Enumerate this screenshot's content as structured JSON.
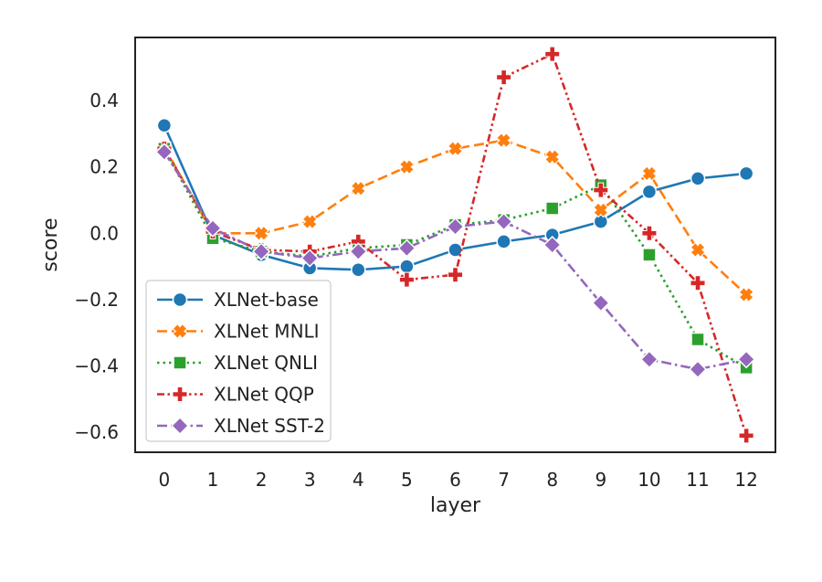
{
  "chart_data": {
    "type": "line",
    "title": "",
    "xlabel": "layer",
    "ylabel": "score",
    "x": [
      0,
      1,
      2,
      3,
      4,
      5,
      6,
      7,
      8,
      9,
      10,
      11,
      12
    ],
    "xlim": [
      -0.6,
      12.6
    ],
    "ylim": [
      -0.66,
      0.59
    ],
    "yticks": [
      0.4,
      0.2,
      0.0,
      -0.2,
      -0.4,
      -0.6
    ],
    "ytick_labels": [
      "0.4",
      "0.2",
      "0.0",
      "−0.2",
      "−0.4",
      "−0.6"
    ],
    "xtick_labels": [
      "0",
      "1",
      "2",
      "3",
      "4",
      "5",
      "6",
      "7",
      "8",
      "9",
      "10",
      "11",
      "12"
    ],
    "grid": false,
    "legend_position": "lower-left",
    "series": [
      {
        "name": "XLNet-base",
        "color": "#1f77b4",
        "dash": "solid",
        "marker": "circle",
        "values": [
          0.325,
          -0.005,
          -0.065,
          -0.105,
          -0.11,
          -0.1,
          -0.05,
          -0.025,
          -0.005,
          0.035,
          0.125,
          0.165,
          0.18
        ]
      },
      {
        "name": "XLNet MNLI",
        "color": "#ff7f0e",
        "dash": "dashed",
        "marker": "x",
        "values": [
          0.26,
          0.0,
          0.0,
          0.035,
          0.135,
          0.2,
          0.255,
          0.28,
          0.23,
          0.07,
          0.18,
          -0.05,
          -0.185
        ]
      },
      {
        "name": "XLNet QNLI",
        "color": "#2ca02c",
        "dash": "dotted",
        "marker": "square",
        "values": [
          0.255,
          -0.015,
          -0.055,
          -0.07,
          -0.045,
          -0.035,
          0.025,
          0.04,
          0.075,
          0.145,
          -0.065,
          -0.32,
          -0.405
        ]
      },
      {
        "name": "XLNet QQP",
        "color": "#d62728",
        "dash": "dashdotdot",
        "marker": "plus",
        "values": [
          0.255,
          0.005,
          -0.05,
          -0.055,
          -0.025,
          -0.14,
          -0.125,
          0.47,
          0.54,
          0.13,
          0.0,
          -0.15,
          -0.61
        ]
      },
      {
        "name": "XLNet SST-2",
        "color": "#9467bd",
        "dash": "dashdot",
        "marker": "diamond",
        "values": [
          0.245,
          0.015,
          -0.055,
          -0.075,
          -0.055,
          -0.045,
          0.02,
          0.035,
          -0.035,
          -0.21,
          -0.38,
          -0.41,
          -0.38
        ]
      }
    ]
  }
}
